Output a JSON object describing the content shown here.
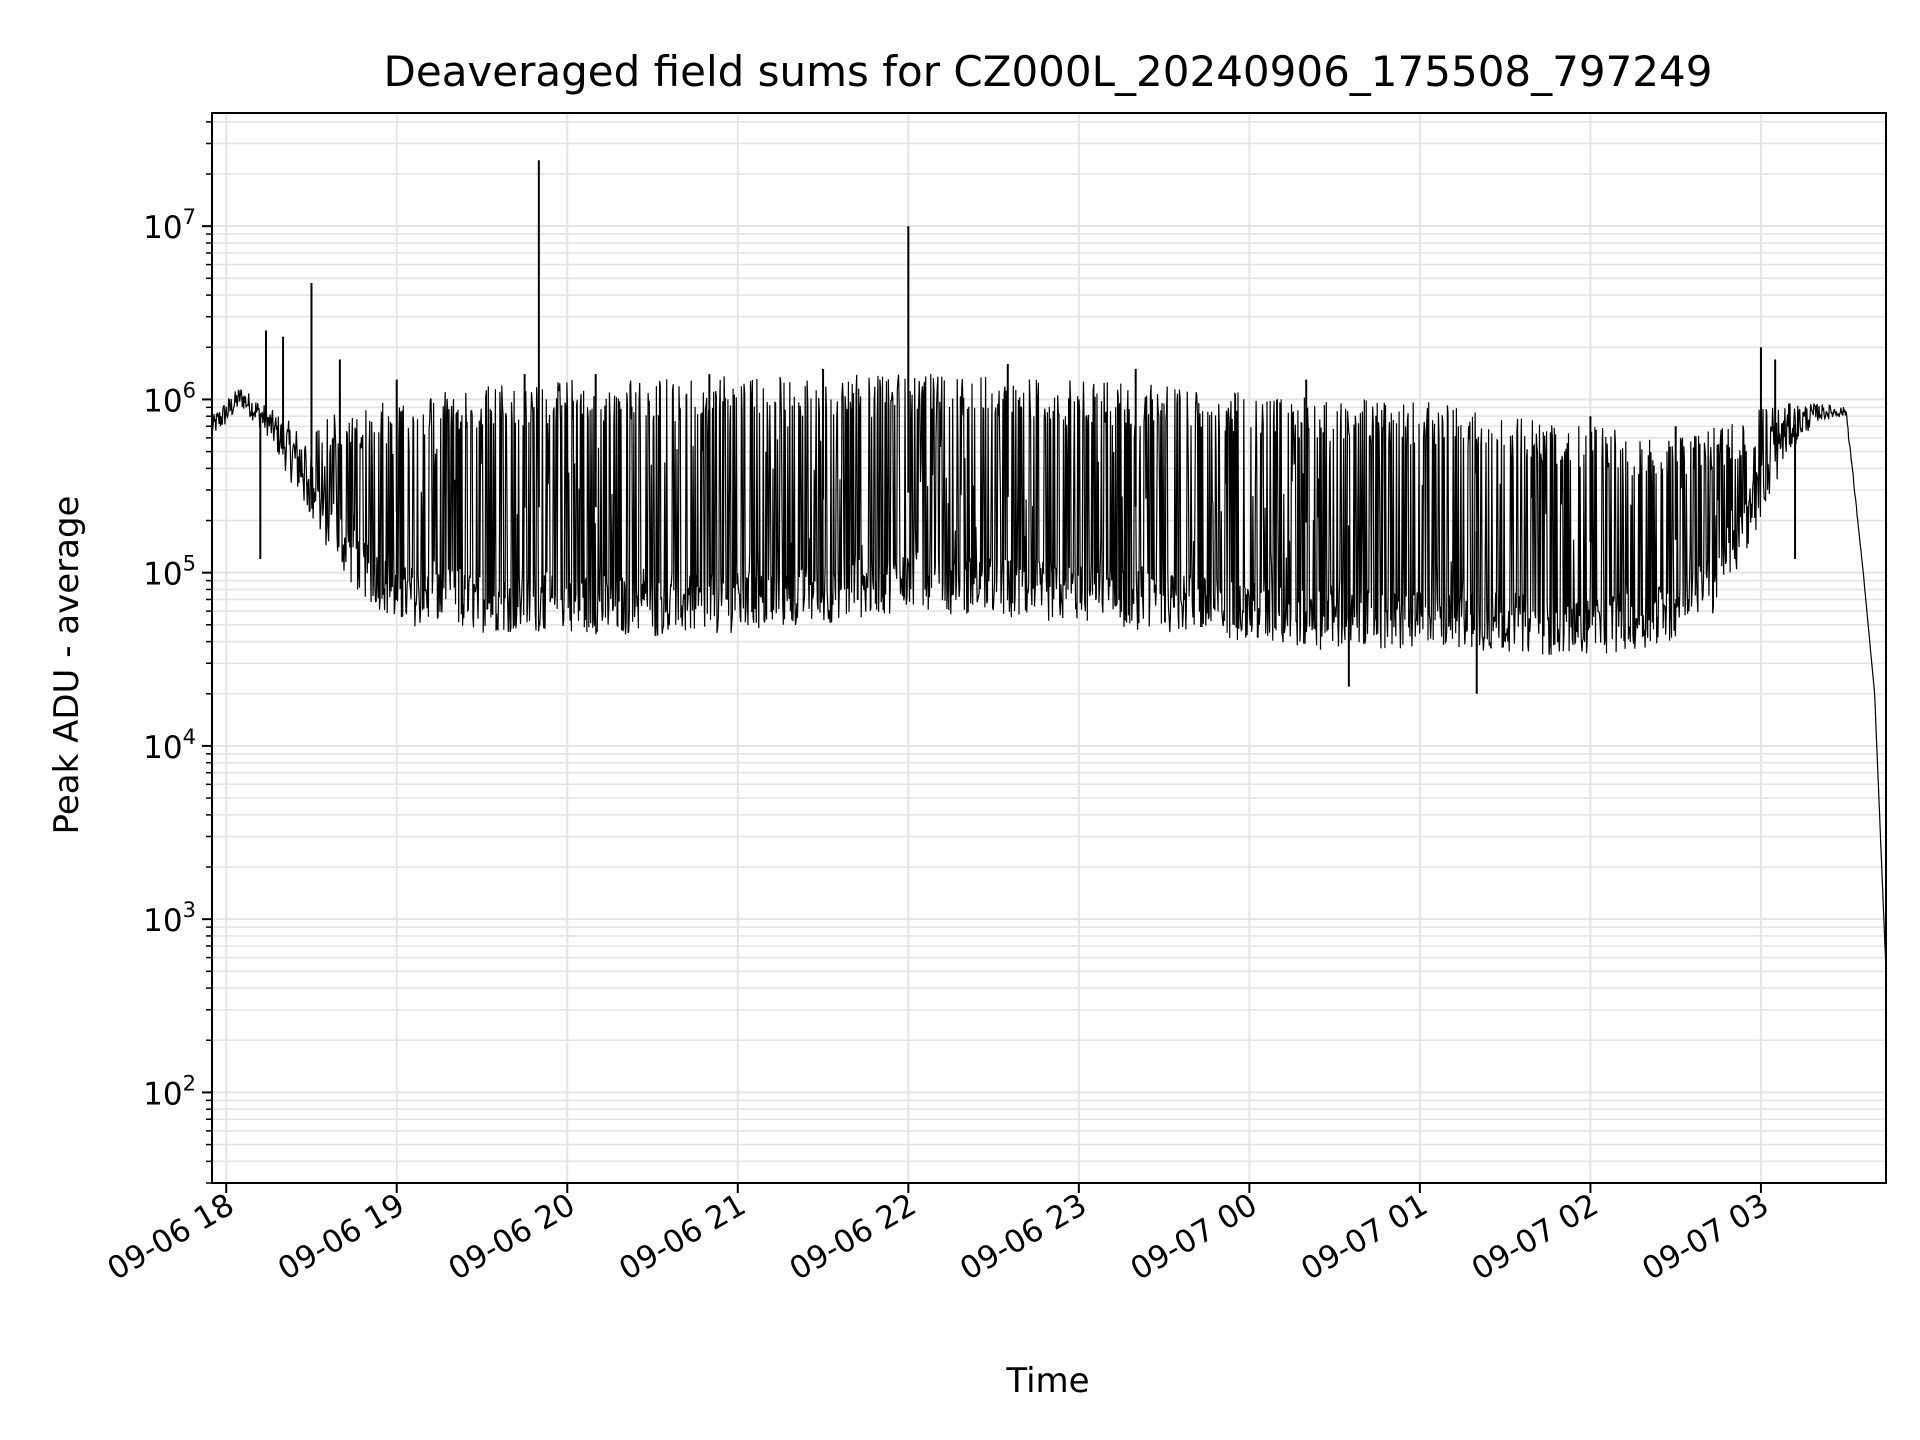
{
  "chart_data": {
    "type": "line",
    "title": "Deaveraged field sums for CZ000L_20240906_175508_797249",
    "xlabel": "Time",
    "ylabel": "Peak ADU - average",
    "yscale": "log",
    "ylim": [
      30,
      45000000
    ],
    "xlim": [
      "2024-09-06 17:55",
      "2024-09-07 03:44"
    ],
    "grid": true,
    "line_color": "#000000",
    "grid_color": "#e5e5e5",
    "x_ticks": [
      "09-06 18",
      "09-06 19",
      "09-06 20",
      "09-06 21",
      "09-06 22",
      "09-06 23",
      "09-07 00",
      "09-07 01",
      "09-07 02",
      "09-07 03"
    ],
    "y_ticks": [
      {
        "base": "10",
        "exp": "2",
        "value": 100
      },
      {
        "base": "10",
        "exp": "3",
        "value": 1000
      },
      {
        "base": "10",
        "exp": "4",
        "value": 10000
      },
      {
        "base": "10",
        "exp": "5",
        "value": 100000
      },
      {
        "base": "10",
        "exp": "6",
        "value": 1000000
      },
      {
        "base": "10",
        "exp": "7",
        "value": 10000000
      }
    ],
    "series": [
      {
        "x": [
          "2024-09-06 17:55",
          "2024-09-06 18:00",
          "2024-09-06 18:05",
          "2024-09-06 18:15",
          "2024-09-06 18:25",
          "2024-09-06 18:35",
          "2024-09-06 18:45",
          "2024-09-06 19:00",
          "2024-09-06 19:30",
          "2024-09-06 20:00",
          "2024-09-06 20:30",
          "2024-09-06 21:00",
          "2024-09-06 21:30",
          "2024-09-06 22:00",
          "2024-09-06 22:30",
          "2024-09-06 23:00",
          "2024-09-06 23:30",
          "2024-09-07 00:00",
          "2024-09-07 00:30",
          "2024-09-07 01:00",
          "2024-09-07 01:30",
          "2024-09-07 02:00",
          "2024-09-07 02:30",
          "2024-09-07 02:45",
          "2024-09-07 03:00",
          "2024-09-07 03:10",
          "2024-09-07 03:20",
          "2024-09-07 03:30",
          "2024-09-07 03:36",
          "2024-09-07 03:40",
          "2024-09-07 03:44"
        ],
        "low": [
          600000,
          700000,
          900000,
          600000,
          280000,
          140000,
          80000,
          50000,
          45000,
          45000,
          42000,
          45000,
          50000,
          60000,
          55000,
          50000,
          45000,
          40000,
          35000,
          35000,
          35000,
          32000,
          40000,
          60000,
          200000,
          500000,
          750000,
          800000,
          100000,
          20000,
          500
        ],
        "high": [
          800000,
          1000000,
          1200000,
          900000,
          700000,
          800000,
          900000,
          1000000,
          1200000,
          1300000,
          1300000,
          1400000,
          1400000,
          1400000,
          1400000,
          1300000,
          1200000,
          1100000,
          1000000,
          1000000,
          800000,
          700000,
          600000,
          700000,
          900000,
          950000,
          950000,
          900000,
          100000,
          20000,
          500
        ]
      }
    ],
    "spikes": [
      {
        "x": "2024-09-06 18:14",
        "y": 2500000
      },
      {
        "x": "2024-09-06 18:20",
        "y": 2300000
      },
      {
        "x": "2024-09-06 18:12",
        "y": 120000
      },
      {
        "x": "2024-09-06 18:30",
        "y": 4700000
      },
      {
        "x": "2024-09-06 18:40",
        "y": 1700000
      },
      {
        "x": "2024-09-06 19:00",
        "y": 1300000
      },
      {
        "x": "2024-09-06 19:45",
        "y": 1400000
      },
      {
        "x": "2024-09-06 19:50",
        "y": 24000000
      },
      {
        "x": "2024-09-06 20:10",
        "y": 1400000
      },
      {
        "x": "2024-09-06 20:50",
        "y": 1400000
      },
      {
        "x": "2024-09-06 21:30",
        "y": 1500000
      },
      {
        "x": "2024-09-06 22:00",
        "y": 10000000
      },
      {
        "x": "2024-09-06 22:35",
        "y": 1600000
      },
      {
        "x": "2024-09-06 23:20",
        "y": 1500000
      },
      {
        "x": "2024-09-07 00:20",
        "y": 1300000
      },
      {
        "x": "2024-09-07 00:35",
        "y": 22000
      },
      {
        "x": "2024-09-07 01:20",
        "y": 20000
      },
      {
        "x": "2024-09-07 02:00",
        "y": 800000
      },
      {
        "x": "2024-09-07 02:30",
        "y": 700000
      },
      {
        "x": "2024-09-07 03:00",
        "y": 2000000
      },
      {
        "x": "2024-09-07 03:05",
        "y": 1700000
      },
      {
        "x": "2024-09-07 03:12",
        "y": 120000
      }
    ]
  }
}
